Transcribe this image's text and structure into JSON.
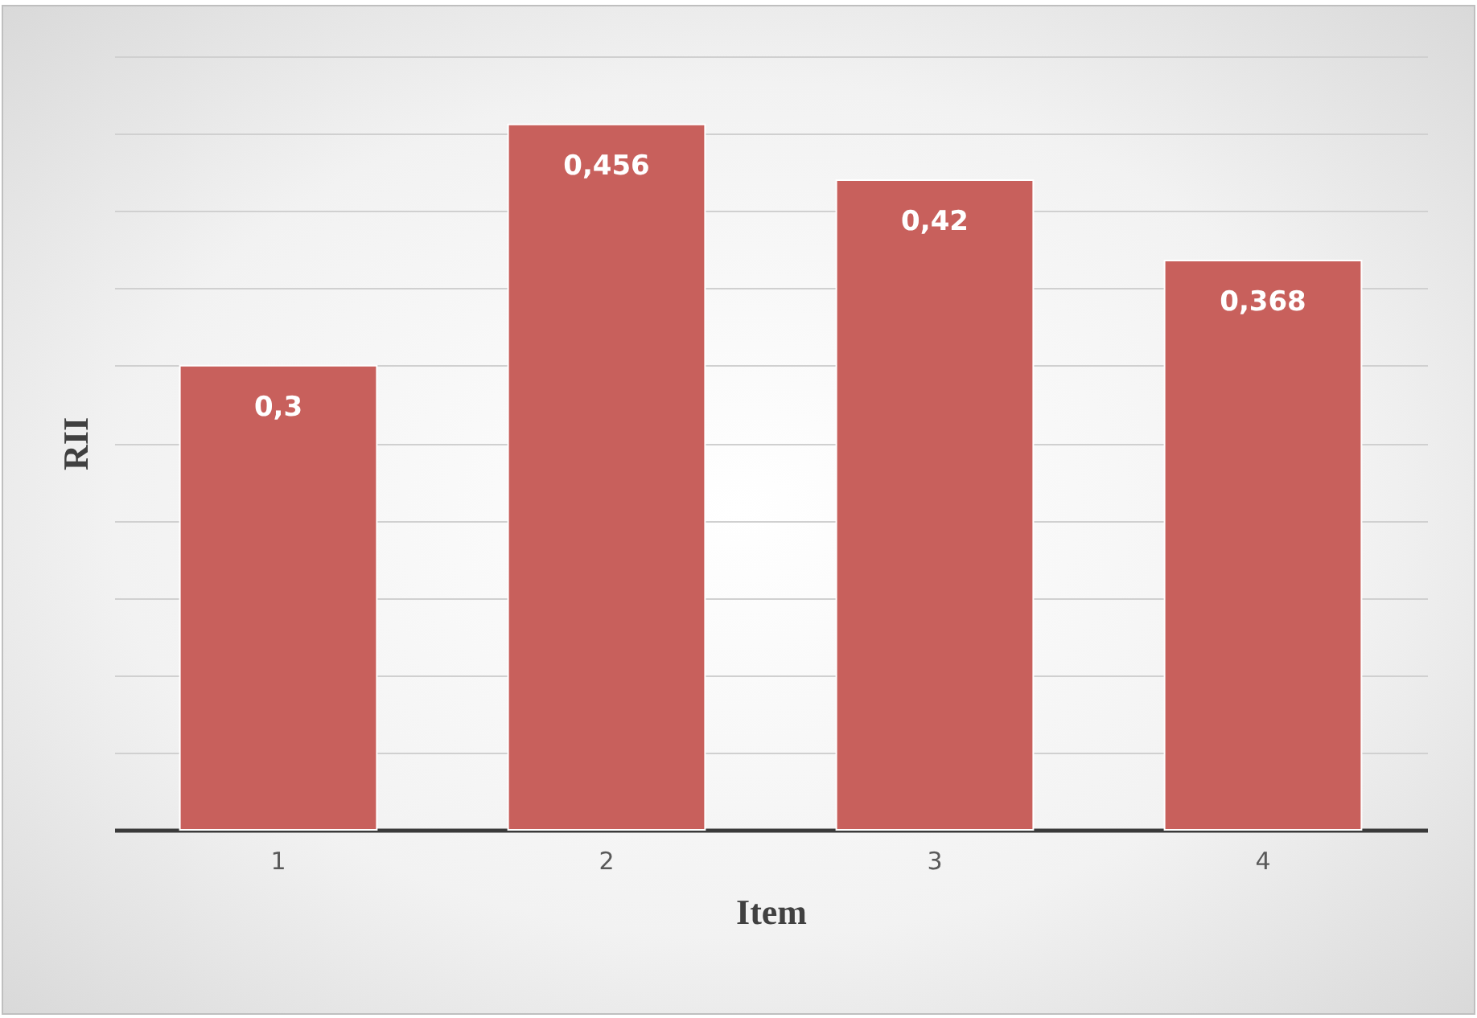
{
  "chart_data": {
    "type": "bar",
    "xlabel": "Item",
    "ylabel": "RII",
    "categories": [
      "1",
      "2",
      "3",
      "4"
    ],
    "values": [
      0.3,
      0.456,
      0.42,
      0.368
    ],
    "value_labels": [
      "0,3",
      "0,456",
      "0,42",
      "0,368"
    ],
    "color": "#c8605c",
    "ylim": [
      0,
      0.5
    ],
    "yticks": [
      {
        "value": 0,
        "label": null
      },
      {
        "value": 0.05,
        "label": null
      },
      {
        "value": 0.1,
        "label": null
      },
      {
        "value": 0.15,
        "label": null
      },
      {
        "value": 0.2,
        "label": null
      },
      {
        "value": 0.25,
        "label": null
      },
      {
        "value": 0.3,
        "label": null
      },
      {
        "value": 0.35,
        "label": null
      },
      {
        "value": 0.4,
        "label": null
      },
      {
        "value": 0.45,
        "label": null
      },
      {
        "value": 0.5,
        "label": null
      }
    ],
    "grid": "y",
    "tick_labels": "x"
  }
}
